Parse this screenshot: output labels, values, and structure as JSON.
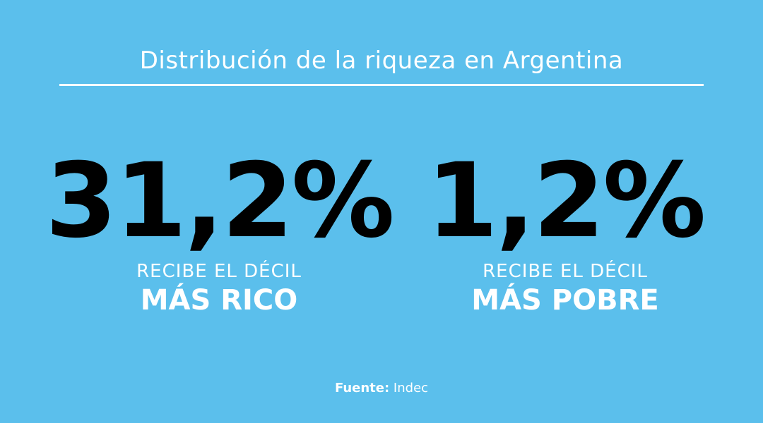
{
  "title": "Distribución de la riqueza en Argentina",
  "colors": {
    "background": "#5bbfec",
    "text": "#ffffff",
    "figure": "#000000",
    "divider": "#ffffff"
  },
  "stats": [
    {
      "value": "31,2%",
      "subtitle": "RECIBE EL DÉCIL",
      "label": "MÁS RICO"
    },
    {
      "value": "1,2%",
      "subtitle": "RECIBE EL DÉCIL",
      "label": "MÁS POBRE"
    }
  ],
  "source": {
    "label": "Fuente:",
    "value": "Indec"
  }
}
